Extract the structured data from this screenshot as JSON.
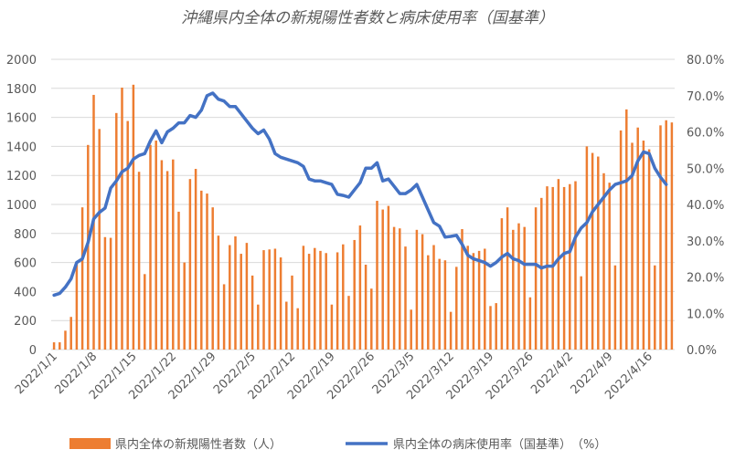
{
  "chart_data": {
    "type": "bar",
    "title": "沖縄県内全体の新規陽性者数と病床使用率（国基準）",
    "xlabel": "",
    "ylabel": "",
    "y_left": {
      "min": 0,
      "max": 2000,
      "step": 200,
      "ticks": [
        "0",
        "200",
        "400",
        "600",
        "800",
        "1000",
        "1200",
        "1400",
        "1600",
        "1800",
        "2000"
      ]
    },
    "y_right": {
      "min": 0,
      "max": 80,
      "step": 10,
      "ticks": [
        "0.0%",
        "10.0%",
        "20.0%",
        "30.0%",
        "40.0%",
        "50.0%",
        "60.0%",
        "70.0%",
        "80.0%"
      ]
    },
    "x_tick_labels": [
      "2022/1/1",
      "2022/1/8",
      "2022/1/15",
      "2022/1/22",
      "2022/1/29",
      "2022/2/5",
      "2022/2/12",
      "2022/2/19",
      "2022/2/26",
      "2022/3/5",
      "2022/3/12",
      "2022/3/19",
      "2022/3/26",
      "2022/4/2",
      "2022/4/9",
      "2022/4/16"
    ],
    "x_tick_step_days": 7,
    "grid": true,
    "legend_position": "bottom",
    "colors": {
      "bars": "#ed7d31",
      "line": "#4472c4"
    },
    "series": [
      {
        "name": "県内全体の新規陽性者数（人）",
        "type": "bar",
        "axis": "left",
        "values": [
          50,
          50,
          130,
          225,
          600,
          980,
          1410,
          1755,
          1520,
          775,
          770,
          1630,
          1805,
          1575,
          1825,
          1225,
          520,
          1410,
          1440,
          1305,
          1230,
          1310,
          950,
          600,
          1175,
          1245,
          1095,
          1075,
          980,
          785,
          450,
          720,
          780,
          660,
          735,
          510,
          310,
          685,
          690,
          695,
          635,
          330,
          510,
          285,
          715,
          660,
          700,
          680,
          665,
          310,
          670,
          725,
          370,
          755,
          855,
          585,
          420,
          1025,
          965,
          990,
          845,
          835,
          710,
          275,
          825,
          795,
          650,
          720,
          625,
          615,
          260,
          570,
          830,
          715,
          665,
          680,
          695,
          300,
          320,
          905,
          980,
          825,
          870,
          845,
          360,
          980,
          1045,
          1125,
          1120,
          1175,
          1120,
          1140,
          1160,
          505,
          1400,
          1355,
          1330,
          1215,
          1150,
          580,
          1510,
          1655,
          1425,
          1530,
          1440,
          1380,
          580,
          1545,
          1580,
          1565
        ]
      },
      {
        "name": "県内全体の病床使用率（国基準）　（%）",
        "type": "line",
        "axis": "right",
        "values": [
          15,
          15.5,
          17.2,
          19.5,
          24,
          25,
          29.5,
          36,
          37.8,
          39,
          44.5,
          46.5,
          49,
          50,
          52.5,
          53.5,
          54,
          57.5,
          60.3,
          57,
          60,
          61,
          62.5,
          62.5,
          64.5,
          64,
          66,
          70,
          70.7,
          69,
          68.5,
          67,
          67,
          65,
          63,
          61,
          59.5,
          60.5,
          58,
          54,
          53,
          52.5,
          52,
          51.5,
          50.5,
          47,
          46.5,
          46.5,
          46,
          45.5,
          42.8,
          42.5,
          42,
          44,
          46,
          50,
          50,
          51.5,
          46.5,
          47,
          45,
          43,
          43,
          44,
          45.5,
          42,
          38.5,
          35,
          34,
          31,
          31.2,
          31.5,
          29,
          26,
          25,
          24.5,
          24,
          23,
          24,
          25.5,
          26.5,
          25,
          24.5,
          23.5,
          23.5,
          23.5,
          22.5,
          23,
          23,
          25,
          26.5,
          27,
          31,
          33.5,
          35,
          38,
          40,
          42,
          44,
          45.5,
          46,
          46.5,
          48,
          52,
          54.5,
          54,
          50,
          47.5,
          45.5
        ]
      }
    ]
  }
}
